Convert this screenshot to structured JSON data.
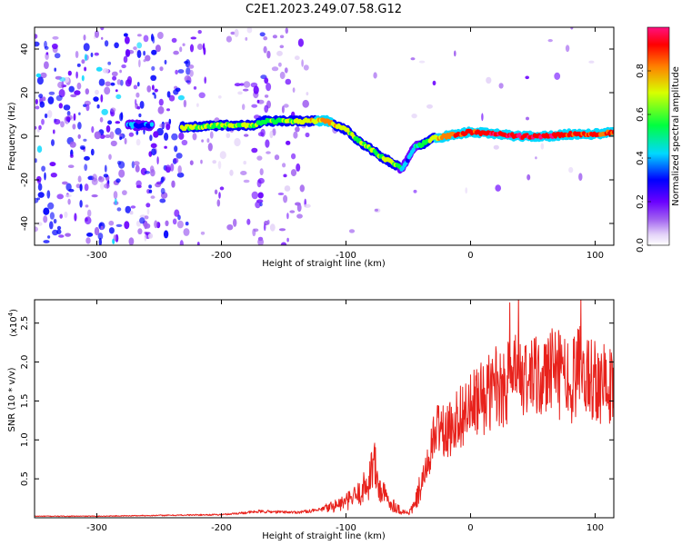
{
  "title": "C2E1.2023.249.07.58.G12",
  "chart_data": [
    {
      "type": "heatmap",
      "xlabel": "Height of straight line (km)",
      "ylabel": "Frequency (Hz)",
      "xlim": [
        -350,
        115
      ],
      "ylim": [
        -50,
        50
      ],
      "xticks": [
        -300,
        -200,
        -100,
        0,
        100
      ],
      "yticks": [
        -40,
        -20,
        0,
        20,
        40
      ],
      "colorbar": {
        "label": "Normalized spectral amplitude",
        "range": [
          0,
          1
        ],
        "ticks": [
          "0.0",
          "0.2",
          "0.4",
          "0.6",
          "0.8"
        ],
        "colormap": [
          "#ffffff",
          "#e3d2f8",
          "#a060f0",
          "#6a00ff",
          "#0000ff",
          "#00d8ff",
          "#00ff40",
          "#d8ff00",
          "#ff8000",
          "#ff0000",
          "#ff1080"
        ]
      },
      "ridge": {
        "height_km": [
          -270,
          -255,
          -230,
          -200,
          -175,
          -165,
          -150,
          -130,
          -115,
          -100,
          -90,
          -80,
          -70,
          -60,
          -55,
          -50,
          -45,
          -40,
          -30,
          -20,
          -10,
          0,
          20,
          40,
          60,
          80,
          100,
          115
        ],
        "frequency_hz": [
          5,
          5,
          4,
          5,
          5,
          7,
          7,
          7,
          7,
          3,
          -2,
          -6,
          -10,
          -13,
          -15,
          -10,
          -5,
          -4,
          -1,
          0,
          1,
          2,
          1,
          0,
          0,
          1,
          1,
          2
        ],
        "amplitude": [
          0.3,
          0.3,
          0.6,
          0.55,
          0.55,
          0.5,
          0.55,
          0.65,
          0.7,
          0.6,
          0.55,
          0.55,
          0.55,
          0.6,
          0.3,
          0.3,
          0.4,
          0.45,
          0.65,
          0.75,
          0.85,
          0.85,
          0.9,
          0.9,
          0.9,
          0.85,
          0.85,
          0.85
        ]
      },
      "noise_region_km": [
        -350,
        -225
      ]
    },
    {
      "type": "line",
      "xlabel": "Height of straight line (km)",
      "ylabel": "SNR (10 * v/v)",
      "y_multiplier": "(x10",
      "y_multiplier_exp": "4",
      "y_multiplier_close": ")",
      "xlim": [
        -350,
        115
      ],
      "ylim": [
        0,
        2.8
      ],
      "xticks": [
        -300,
        -200,
        -100,
        0,
        100
      ],
      "yticks": [
        "0.5",
        "1.0",
        "1.5",
        "2.0",
        "2.5"
      ],
      "line_color": "#e8221c",
      "x": [
        -350,
        -300,
        -250,
        -200,
        -170,
        -140,
        -120,
        -100,
        -90,
        -82,
        -78,
        -74,
        -65,
        -55,
        -50,
        -45,
        -40,
        -36,
        -32,
        -28,
        -25,
        -20,
        -10,
        0,
        10,
        20,
        30,
        40,
        50,
        60,
        70,
        80,
        90,
        100,
        110,
        115
      ],
      "y": [
        0.02,
        0.02,
        0.03,
        0.04,
        0.08,
        0.07,
        0.1,
        0.2,
        0.3,
        0.45,
        0.75,
        0.4,
        0.2,
        0.08,
        0.06,
        0.15,
        0.4,
        0.6,
        0.85,
        1.1,
        1.2,
        1.05,
        1.3,
        1.4,
        1.55,
        1.65,
        1.75,
        1.8,
        1.75,
        1.85,
        1.85,
        1.75,
        1.9,
        1.8,
        1.7,
        1.7
      ]
    }
  ]
}
